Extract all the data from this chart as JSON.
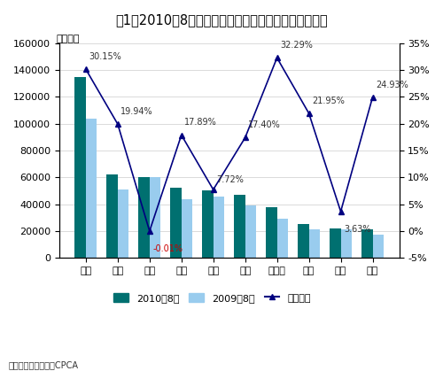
{
  "title": "图1：2010年8月国产外资汽车品牌狭义乘用车销量前十",
  "unit_label": "单位：辆",
  "source_label": "来源：盖世汽车网，CPCA",
  "categories": [
    "大众",
    "现代",
    "丰田",
    "日产",
    "本田",
    "别克",
    "雪佛兰",
    "起亚",
    "福特",
    "馒木"
  ],
  "values_2010": [
    135000,
    62000,
    60000,
    52000,
    50000,
    47000,
    38000,
    25000,
    22000,
    21000
  ],
  "values_2009": [
    104000,
    51000,
    60000,
    44000,
    46000,
    39000,
    29000,
    21000,
    21000,
    17000
  ],
  "growth_rates": [
    30.15,
    19.94,
    -0.01,
    17.89,
    7.72,
    17.4,
    32.29,
    21.95,
    3.63,
    24.93
  ],
  "growth_labels": [
    "30.15%",
    "19.94%",
    "-0.01%",
    "17.89%",
    "7.72%",
    "17.40%",
    "32.29%",
    "21.95%",
    "3.63%",
    "24.93%"
  ],
  "growth_label_colors": [
    "#333333",
    "#333333",
    "#CC0000",
    "#333333",
    "#333333",
    "#333333",
    "#333333",
    "#333333",
    "#333333",
    "#333333"
  ],
  "bar_color_2010": "#007070",
  "bar_color_2009": "#99CCEE",
  "line_color": "#000080",
  "line_marker": "^",
  "ylim_left": [
    0,
    160000
  ],
  "ylim_right": [
    -5,
    35
  ],
  "yticks_left": [
    0,
    20000,
    40000,
    60000,
    80000,
    100000,
    120000,
    140000,
    160000
  ],
  "yticks_right": [
    -5,
    0,
    5,
    10,
    15,
    20,
    25,
    30,
    35
  ],
  "ytick_labels_right": [
    "-5%",
    "0%",
    "5%",
    "10%",
    "15%",
    "20%",
    "25%",
    "30%",
    "35%"
  ],
  "legend_2010": "2010年8月",
  "legend_2009": "2009年8月",
  "legend_growth": "同比增长",
  "title_fontsize": 10.5,
  "tick_fontsize": 8,
  "label_fontsize": 8,
  "annot_fontsize": 7,
  "background_color": "#FFFFFF"
}
